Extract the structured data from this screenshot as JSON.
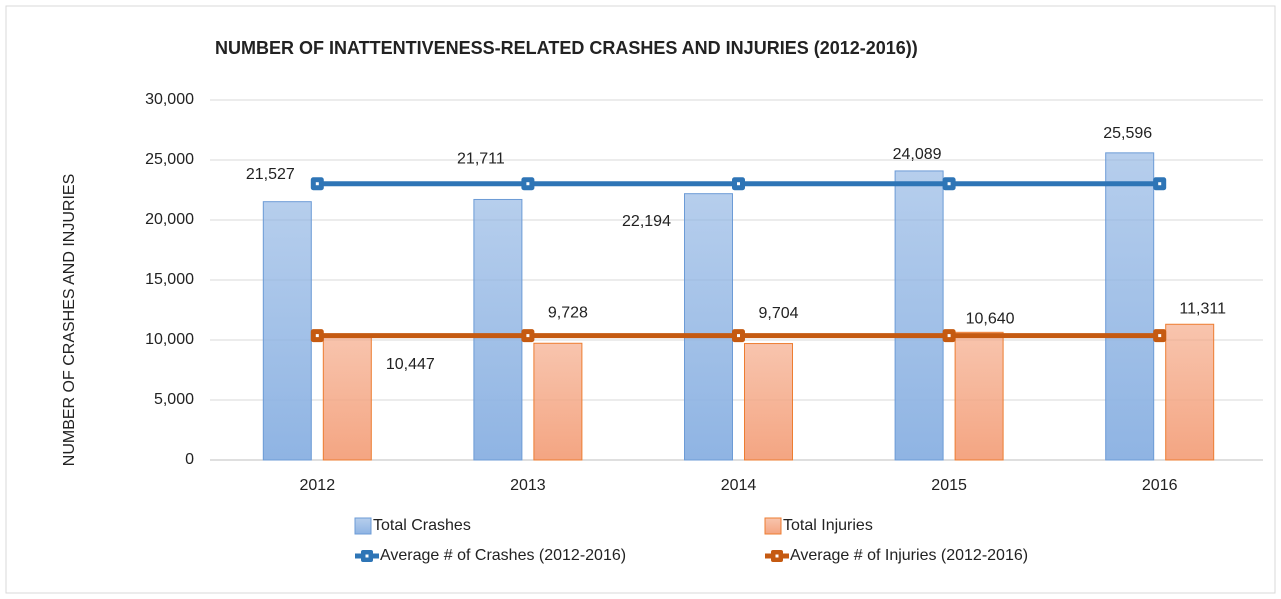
{
  "chart_data": {
    "type": "bar",
    "title": "NUMBER OF INATTENTIVENESS-RELATED CRASHES AND INJURIES (2012-2016))",
    "y_axis_label": "NUMBER OF CRASHES AND INJURIES",
    "categories": [
      "2012",
      "2013",
      "2014",
      "2015",
      "2016"
    ],
    "series": [
      {
        "name": "Total Crashes",
        "type": "bar",
        "color": "#8fb4e3",
        "stroke": "#6c9bd6",
        "values": [
          21527,
          21711,
          22194,
          24089,
          25596
        ],
        "value_labels": [
          "21,527",
          "21,711",
          "22,194",
          "24,089",
          "25,596"
        ]
      },
      {
        "name": "Total Injuries",
        "type": "bar",
        "color": "#f4a582",
        "stroke": "#ed7d31",
        "values": [
          10447,
          9728,
          9704,
          10640,
          11311
        ],
        "value_labels": [
          "10,447",
          "9,728",
          "9,704",
          "10,640",
          "11,311"
        ]
      },
      {
        "name": "Average # of Crashes (2012-2016)",
        "type": "line",
        "color": "#2e75b6",
        "values": [
          23023,
          23023,
          23023,
          23023,
          23023
        ]
      },
      {
        "name": "Average # of Injuries (2012-2016)",
        "type": "line",
        "color": "#c55a11",
        "values": [
          10366,
          10366,
          10366,
          10366,
          10366
        ]
      }
    ],
    "ylim": [
      0,
      30000
    ],
    "yticks": [
      0,
      {
        "value": 5000,
        "label": "5,000"
      },
      {
        "value": 10000,
        "label": "10,000"
      },
      {
        "value": 15000,
        "label": "15,000"
      },
      {
        "value": 20000,
        "label": "20,000"
      },
      {
        "value": 25000,
        "label": "25,000"
      },
      {
        "value": 30000,
        "label": "30,000"
      }
    ],
    "grid": true
  }
}
